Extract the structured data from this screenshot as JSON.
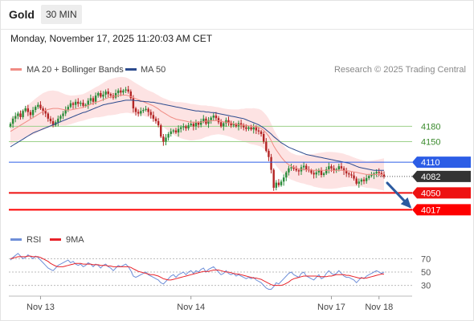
{
  "header": {
    "symbol": "Gold",
    "interval": "30 MIN",
    "datetime": "Monday, November 17, 2025 11:20:03 AM CET"
  },
  "legend": {
    "ma20": {
      "label": "MA 20 + Bollinger Bands",
      "color": "#f08c84"
    },
    "ma50": {
      "label": "MA 50",
      "color": "#2c4b8e"
    },
    "copyright": "Research © 2025 Trading Central"
  },
  "rsi_legend": {
    "rsi": {
      "label": "RSI",
      "color": "#6f8fd8"
    },
    "ma9": {
      "label": "9MA",
      "color": "#e8232a"
    }
  },
  "colors": {
    "up": "#2a8c3a",
    "down": "#b32424",
    "band": "#fde3e3",
    "resistance": "#2c5de6",
    "support": "#ee1111",
    "current": "#333333",
    "target": "#fe0000",
    "arrow": "#2c5aa0",
    "green_level": "#9dd18a"
  },
  "chart_data": [
    {
      "type": "candlestick",
      "title": "",
      "y_range": [
        3980,
        4270
      ],
      "x_labels": [
        "Nov 13",
        "Nov 14",
        "Nov 17",
        "Nov 18"
      ],
      "levels": [
        {
          "value": 4180,
          "label": "4180",
          "style": "green"
        },
        {
          "value": 4150,
          "label": "4150",
          "style": "green"
        },
        {
          "value": 4110,
          "label": "4110",
          "style": "resistance"
        },
        {
          "value": 4082,
          "label": "4082",
          "style": "current"
        },
        {
          "value": 4050,
          "label": "4050",
          "style": "support"
        },
        {
          "value": 4017,
          "label": "4017",
          "style": "target"
        }
      ],
      "close": [
        4185,
        4195,
        4200,
        4205,
        4198,
        4210,
        4215,
        4208,
        4202,
        4212,
        4218,
        4222,
        4215,
        4210,
        4205,
        4195,
        4190,
        4182,
        4188,
        4195,
        4200,
        4205,
        4212,
        4218,
        4225,
        4222,
        4228,
        4224,
        4226,
        4220,
        4222,
        4230,
        4235,
        4228,
        4240,
        4245,
        4238,
        4242,
        4248,
        4243,
        4240,
        4236,
        4245,
        4250,
        4246,
        4250,
        4252,
        4248,
        4235,
        4215,
        4208,
        4205,
        4210,
        4212,
        4214,
        4208,
        4202,
        4195,
        4190,
        4182,
        4160,
        4150,
        4158,
        4165,
        4170,
        4172,
        4168,
        4175,
        4178,
        4180,
        4176,
        4182,
        4185,
        4180,
        4187,
        4183,
        4190,
        4195,
        4185,
        4192,
        4197,
        4201,
        4196,
        4188,
        4180,
        4186,
        4192,
        4187,
        4182,
        4184,
        4180,
        4186,
        4182,
        4178,
        4175,
        4178,
        4174,
        4178,
        4172,
        4170,
        4165,
        4150,
        4132,
        4120,
        4095,
        4060,
        4070,
        4065,
        4072,
        4080,
        4090,
        4098,
        4100,
        4097,
        4094,
        4092,
        4100,
        4103,
        4096,
        4094,
        4089,
        4086,
        4090,
        4094,
        4085,
        4088,
        4096,
        4102,
        4098,
        4094,
        4096,
        4102,
        4098,
        4093,
        4088,
        4086,
        4084,
        4078,
        4068,
        4072,
        4076,
        4073,
        4079,
        4083,
        4085,
        4088,
        4091,
        4089,
        4086,
        4082
      ],
      "ma20": [
        4170,
        4173,
        4176,
        4179,
        4182,
        4185,
        4188,
        4191,
        4194,
        4197,
        4200,
        4203,
        4206,
        4209,
        4211,
        4213,
        4214,
        4215,
        4215,
        4215,
        4214,
        4213,
        4212,
        4212,
        4212,
        4213,
        4214,
        4215,
        4216,
        4217,
        4219,
        4221,
        4223,
        4225,
        4227,
        4228,
        4230,
        4232,
        4234,
        4236,
        4237,
        4238,
        4239,
        4240,
        4241,
        4241,
        4241,
        4240,
        4238,
        4236,
        4234,
        4232,
        4230,
        4228,
        4226,
        4224,
        4222,
        4220,
        4217,
        4214,
        4210,
        4207,
        4204,
        4201,
        4198,
        4196,
        4194,
        4193,
        4192,
        4191,
        4190,
        4189,
        4188,
        4188,
        4188,
        4188,
        4188,
        4189,
        4190,
        4190,
        4191,
        4191,
        4191,
        4191,
        4190,
        4189,
        4188,
        4187,
        4186,
        4185,
        4184,
        4183,
        4183,
        4182,
        4182,
        4181,
        4180,
        4180,
        4179,
        4178,
        4176,
        4172,
        4167,
        4161,
        4152,
        4142,
        4134,
        4127,
        4120,
        4114,
        4109,
        4105,
        4102,
        4100,
        4098,
        4097,
        4096,
        4096,
        4095,
        4095,
        4095,
        4094,
        4094,
        4094,
        4094,
        4094,
        4094,
        4094,
        4094,
        4094,
        4094,
        4094,
        4094,
        4094,
        4093,
        4093,
        4092,
        4091,
        4090,
        4089,
        4088,
        4087,
        4086,
        4086,
        4086,
        4086,
        4086,
        4086,
        4086,
        4086
      ],
      "ma50": [
        4140,
        4143,
        4146,
        4149,
        4152,
        4155,
        4158,
        4161,
        4164,
        4167,
        4169,
        4171,
        4173,
        4175,
        4177,
        4179,
        4181,
        4183,
        4185,
        4187,
        4189,
        4191,
        4193,
        4195,
        4197,
        4199,
        4201,
        4203,
        4205,
        4207,
        4208,
        4210,
        4212,
        4214,
        4216,
        4218,
        4220,
        4222,
        4223,
        4224,
        4225,
        4226,
        4227,
        4228,
        4229,
        4230,
        4231,
        4231,
        4231,
        4231,
        4230,
        4230,
        4229,
        4229,
        4228,
        4228,
        4227,
        4227,
        4226,
        4225,
        4224,
        4223,
        4222,
        4221,
        4220,
        4219,
        4218,
        4217,
        4216,
        4215,
        4214,
        4213,
        4212,
        4211,
        4210,
        4210,
        4209,
        4209,
        4208,
        4208,
        4207,
        4207,
        4206,
        4205,
        4204,
        4203,
        4202,
        4201,
        4200,
        4199,
        4198,
        4197,
        4196,
        4195,
        4193,
        4191,
        4189,
        4187,
        4185,
        4183,
        4180,
        4177,
        4173,
        4169,
        4165,
        4160,
        4156,
        4152,
        4148,
        4145,
        4142,
        4139,
        4137,
        4135,
        4133,
        4131,
        4129,
        4127,
        4125,
        4124,
        4123,
        4122,
        4121,
        4120,
        4119,
        4118,
        4117,
        4116,
        4115,
        4114,
        4113,
        4112,
        4111,
        4110,
        4109,
        4108,
        4106,
        4104,
        4102,
        4100,
        4099,
        4098,
        4097,
        4096,
        4095,
        4094,
        4094,
        4094,
        4094,
        4094
      ]
    },
    {
      "type": "line",
      "title": "",
      "y_range": [
        15,
        85
      ],
      "y_ticks": [
        70,
        50,
        30
      ],
      "rsi": [
        68,
        72,
        75,
        78,
        74,
        70,
        72,
        76,
        73,
        70,
        74,
        72,
        68,
        64,
        60,
        56,
        54,
        52,
        56,
        60,
        62,
        64,
        66,
        68,
        64,
        66,
        62,
        60,
        62,
        58,
        60,
        64,
        62,
        58,
        62,
        60,
        56,
        60,
        62,
        58,
        56,
        52,
        56,
        60,
        58,
        60,
        62,
        58,
        52,
        44,
        42,
        44,
        46,
        48,
        50,
        46,
        44,
        42,
        40,
        38,
        34,
        32,
        36,
        40,
        44,
        46,
        42,
        46,
        48,
        50,
        46,
        50,
        52,
        48,
        52,
        50,
        54,
        56,
        50,
        54,
        56,
        58,
        54,
        50,
        46,
        48,
        52,
        48,
        46,
        48,
        44,
        46,
        44,
        42,
        40,
        42,
        40,
        42,
        38,
        36,
        34,
        30,
        26,
        24,
        24,
        28,
        34,
        32,
        36,
        40,
        44,
        48,
        50,
        46,
        44,
        42,
        48,
        50,
        44,
        42,
        40,
        38,
        42,
        46,
        40,
        42,
        48,
        52,
        48,
        46,
        48,
        52,
        48,
        44,
        42,
        42,
        40,
        38,
        34,
        38,
        42,
        40,
        44,
        46,
        48,
        50,
        52,
        50,
        48,
        50
      ],
      "ma9": [
        70,
        71,
        72,
        73,
        73,
        73,
        73,
        74,
        74,
        73,
        73,
        73,
        72,
        70,
        68,
        66,
        63,
        61,
        59,
        58,
        58,
        58,
        59,
        60,
        61,
        62,
        63,
        63,
        63,
        62,
        62,
        62,
        62,
        61,
        61,
        61,
        60,
        60,
        60,
        59,
        59,
        58,
        58,
        58,
        58,
        58,
        58,
        58,
        57,
        55,
        53,
        51,
        50,
        49,
        48,
        47,
        46,
        46,
        45,
        44,
        42,
        40,
        39,
        38,
        38,
        39,
        40,
        41,
        42,
        43,
        44,
        45,
        46,
        47,
        48,
        49,
        50,
        51,
        51,
        51,
        52,
        53,
        53,
        53,
        52,
        51,
        50,
        50,
        49,
        48,
        47,
        47,
        46,
        45,
        44,
        43,
        42,
        41,
        41,
        40,
        39,
        37,
        35,
        33,
        31,
        30,
        30,
        30,
        30,
        31,
        33,
        35,
        38,
        40,
        41,
        42,
        43,
        44,
        44,
        44,
        44,
        44,
        44,
        43,
        43,
        43,
        43,
        44,
        44,
        45,
        46,
        46,
        46,
        46,
        45,
        45,
        44,
        43,
        42,
        41,
        41,
        41,
        41,
        42,
        43,
        44,
        45,
        46,
        47,
        47
      ]
    }
  ]
}
